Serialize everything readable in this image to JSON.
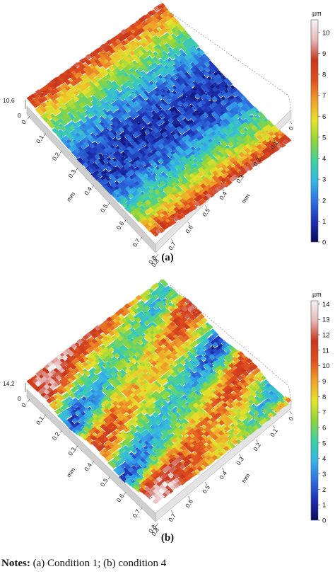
{
  "panels": [
    {
      "id": "a",
      "caption": "(a)",
      "unit": "µm",
      "z_max_label": "10.6",
      "colorbar_ticks": [
        "0",
        "1",
        "2",
        "3",
        "4",
        "5",
        "6",
        "7",
        "8",
        "9",
        "10"
      ],
      "colorbar_max": 10.6,
      "axis_label_left": "mm",
      "axis_label_right": "mm",
      "left_axis_ticks": [
        "0",
        "0.1",
        "0.2",
        "0.3",
        "0.4",
        "0.5",
        "0.6",
        "0.7",
        "0.8"
      ],
      "right_axis_ticks": [
        "0",
        "0.1",
        "0.2",
        "0.3",
        "0.4",
        "0.5",
        "0.6",
        "0.7",
        "0.8"
      ],
      "z_axis_zero": "0",
      "surface": "condition-1"
    },
    {
      "id": "b",
      "caption": "(b)",
      "unit": "µm",
      "z_max_label": "14.2",
      "colorbar_ticks": [
        "0",
        "1",
        "2",
        "3",
        "4",
        "5",
        "6",
        "7",
        "8",
        "9",
        "10",
        "11",
        "12",
        "13",
        "14"
      ],
      "colorbar_max": 14.2,
      "axis_label_left": "mm",
      "axis_label_right": "mm",
      "left_axis_ticks": [
        "0",
        "0.1",
        "0.2",
        "0.3",
        "0.4",
        "0.5",
        "0.6",
        "0.7",
        "0.8"
      ],
      "right_axis_ticks": [
        "0",
        "0.1",
        "0.2",
        "0.3",
        "0.4",
        "0.5",
        "0.6",
        "0.7",
        "0.8"
      ],
      "z_axis_zero": "0",
      "surface": "condition-4"
    }
  ],
  "notes": {
    "label": "Notes:",
    "text": " (a) Condition 1; (b) condition 4"
  },
  "colormap": [
    "#0a0a5a",
    "#1d2fb0",
    "#2f6fe0",
    "#35b6e6",
    "#3ed0a0",
    "#8ed43a",
    "#e6e22a",
    "#f0a02a",
    "#e0501f",
    "#c8361c",
    "#e6b8b8",
    "#f4f4f4"
  ]
}
